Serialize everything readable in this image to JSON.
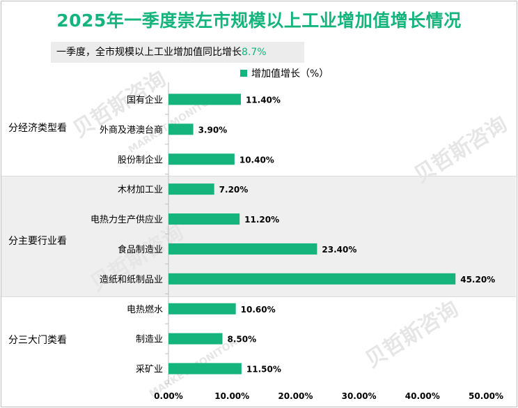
{
  "title": "2025年一季度崇左市规模以上工业增加值增长情况",
  "subtitle": {
    "prefix": "一季度，全市规模以上工业增加值同比增长",
    "value": "8.7%"
  },
  "legend": "增加值增长（%）",
  "watermark": {
    "brand": "贝哲斯咨询",
    "tagline": "MARKET MONITOR"
  },
  "colors": {
    "bar": "#14b47c",
    "title": "#14b47c",
    "band": "#efefef"
  },
  "chart_data": {
    "type": "bar",
    "orientation": "horizontal",
    "title": "2025年一季度崇左市规模以上工业增加值增长情况",
    "series": [
      {
        "name": "增加值增长（%）",
        "values": [
          11.4,
          3.9,
          10.4,
          7.2,
          11.2,
          23.4,
          45.2,
          10.6,
          8.5,
          11.5
        ]
      }
    ],
    "categories": [
      "国有企业",
      "外商及港澳台商",
      "股份制企业",
      "木材加工业",
      "电热力生产供应业",
      "食品制造业",
      "造纸和纸制品业",
      "电热燃水",
      "制造业",
      "采矿业"
    ],
    "value_labels": [
      "11.40%",
      "3.90%",
      "10.40%",
      "7.20%",
      "11.20%",
      "23.40%",
      "45.20%",
      "10.60%",
      "8.50%",
      "11.50%"
    ],
    "groups": [
      {
        "label": "分经济类型看",
        "count": 3
      },
      {
        "label": "分主要行业看",
        "count": 4
      },
      {
        "label": "分三大门类看",
        "count": 3
      }
    ],
    "xlim": [
      0,
      50
    ],
    "xticks": [
      "0.00%",
      "10.00%",
      "20.00%",
      "30.00%",
      "40.00%",
      "50.00%"
    ],
    "legend_position": "top"
  }
}
